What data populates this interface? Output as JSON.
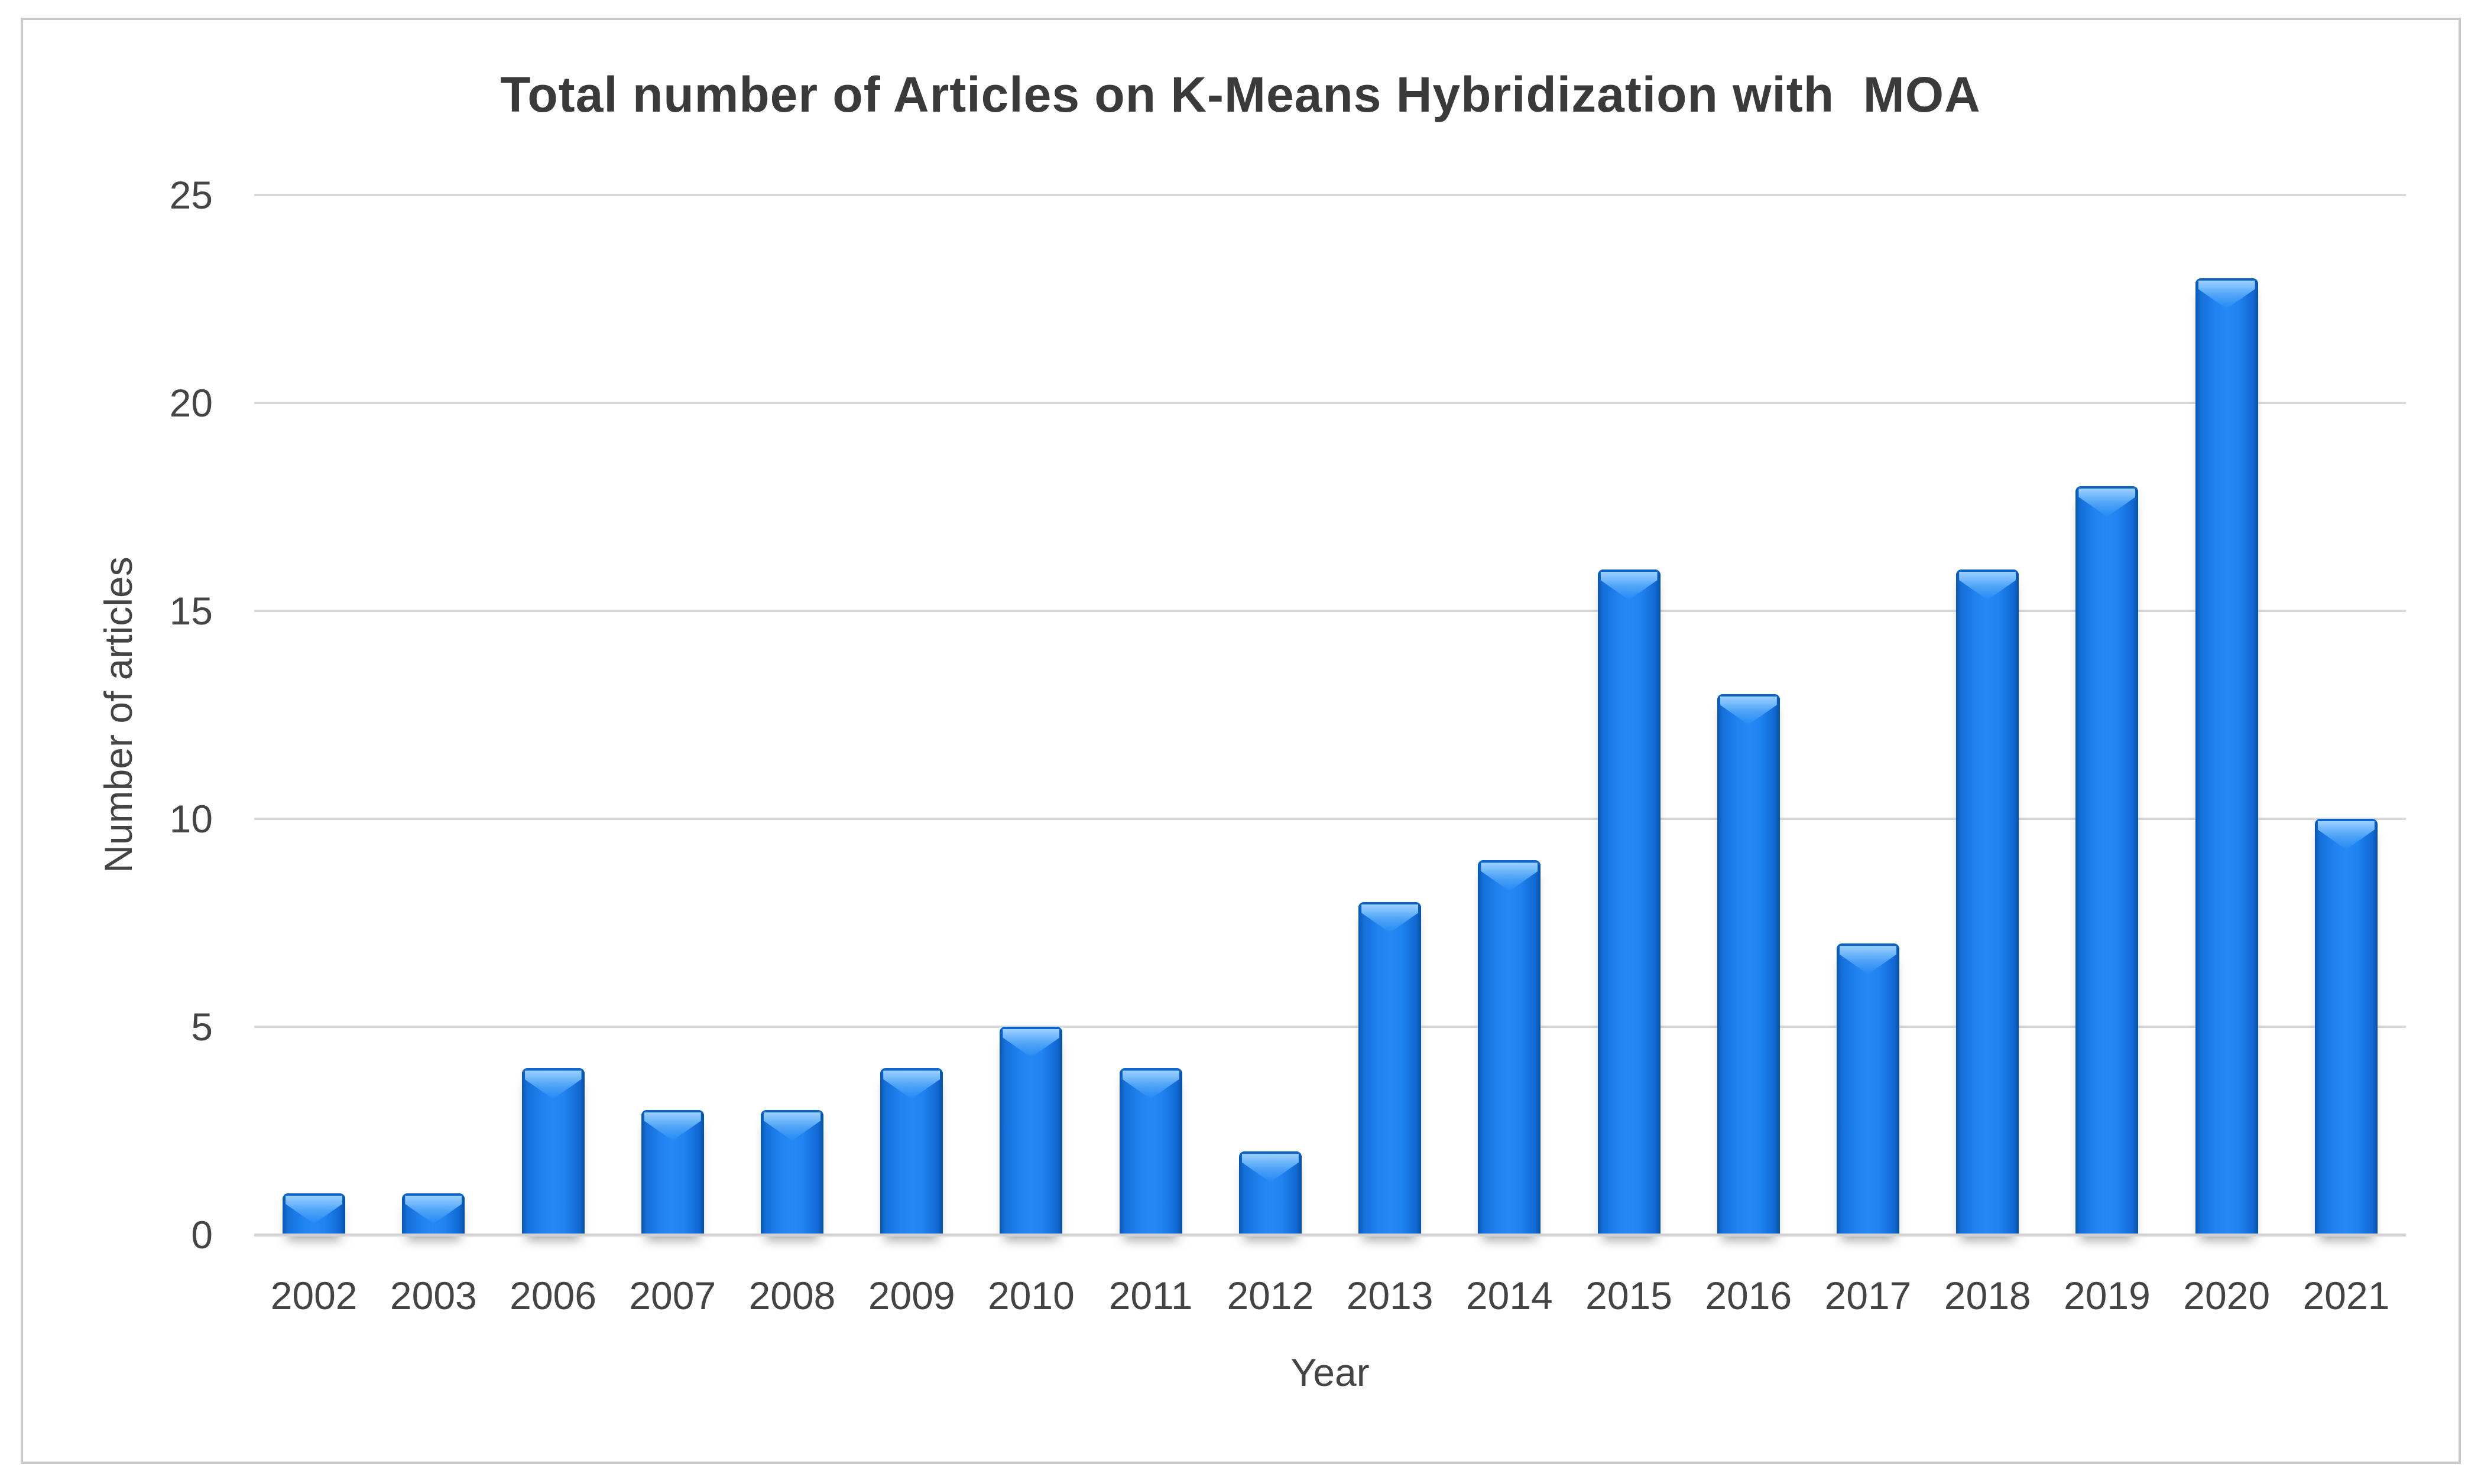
{
  "chart_data": {
    "type": "bar",
    "title": "Total number of Articles on K-Means Hybridization with  MOA",
    "xlabel": "Year",
    "ylabel": "Number of articles",
    "categories": [
      "2002",
      "2003",
      "2006",
      "2007",
      "2008",
      "2009",
      "2010",
      "2011",
      "2012",
      "2013",
      "2014",
      "2015",
      "2016",
      "2017",
      "2018",
      "2019",
      "2020",
      "2021"
    ],
    "values": [
      1,
      1,
      4,
      3,
      3,
      4,
      5,
      4,
      2,
      8,
      9,
      16,
      13,
      7,
      16,
      18,
      23,
      10
    ],
    "ylim": [
      0,
      25
    ],
    "yticks": [
      0,
      5,
      10,
      15,
      20,
      25
    ],
    "grid": true,
    "legend": "none",
    "colors": {
      "bar_main": "#2489f5",
      "bar_edge_dark": "#0a55ad",
      "bar_gloss": "#9dd0ff",
      "gridline": "#d9d9d9",
      "text": "#444444",
      "title_text": "#3a3a3a",
      "frame_border": "#c9c9c9",
      "background": "#ffffff"
    }
  }
}
